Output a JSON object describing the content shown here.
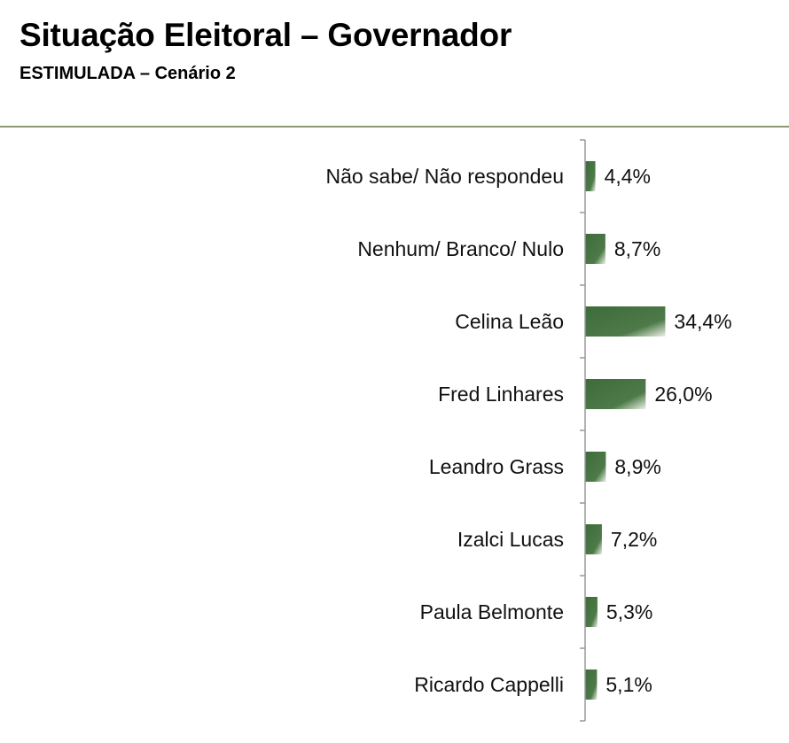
{
  "chart_data": {
    "type": "bar",
    "orientation": "horizontal",
    "title": "Situação Eleitoral – Governador",
    "subtitle": "ESTIMULADA – Cenário 2",
    "categories": [
      "Não sabe/ Não respondeu",
      "Nenhum/ Branco/ Nulo",
      "Celina Leão",
      "Fred Linhares",
      "Leandro Grass",
      "Izalci Lucas",
      "Paula Belmonte",
      "Ricardo Cappelli"
    ],
    "values": [
      4.4,
      8.7,
      34.4,
      26.0,
      8.9,
      7.2,
      5.3,
      5.1
    ],
    "value_labels": [
      "4,4%",
      "8,7%",
      "34,4%",
      "26,0%",
      "8,9%",
      "7,2%",
      "5,3%",
      "5,1%"
    ],
    "xlim": [
      0,
      35
    ],
    "grid": false,
    "legend": "none",
    "colors": {
      "bar_dark": "#3e6b3a",
      "bar_light": "#ecf1e8",
      "axis": "#999999",
      "rule": "#8a9a6e"
    }
  }
}
